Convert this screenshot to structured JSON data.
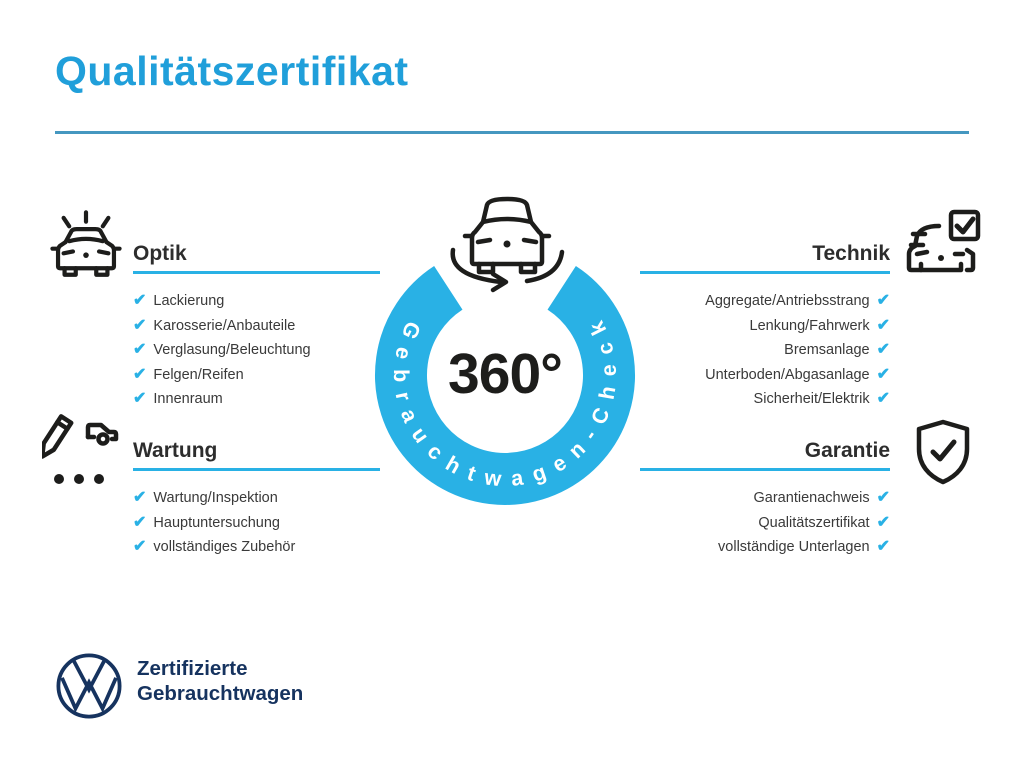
{
  "title": "Qualitätszertifikat",
  "checkmark": "✔",
  "colors": {
    "title_blue": "#209fda",
    "accent_blue": "#29b1e5",
    "rule_blue": "#4597c0",
    "heading_dark": "#2d2d2d",
    "item_gray": "#3a3a3a",
    "vw_navy": "#16335f",
    "icon_black": "#1d1d1b"
  },
  "center": {
    "degree_label": "360°",
    "ring_label": "Gebrauchtwagen-Check"
  },
  "sections": [
    {
      "id": "optik",
      "title": "Optik",
      "icon": "sparkle-car-icon",
      "align": "left",
      "items": [
        "Lackierung",
        "Karosserie/Anbauteile",
        "Verglasung/Beleuchtung",
        "Felgen/Reifen",
        "Innenraum"
      ]
    },
    {
      "id": "technik",
      "title": "Technik",
      "icon": "car-checkbox-icon",
      "align": "right",
      "items": [
        "Aggregate/Antriebsstrang",
        "Lenkung/Fahrwerk",
        "Bremsanlage",
        "Unterboden/Abgasanlage",
        "Sicherheit/Elektrik"
      ]
    },
    {
      "id": "wartung",
      "title": "Wartung",
      "icon": "service-checklist-icon",
      "align": "left",
      "items": [
        "Wartung/Inspektion",
        "Hauptuntersuchung",
        "vollständiges Zubehör"
      ]
    },
    {
      "id": "garantie",
      "title": "Garantie",
      "icon": "shield-check-icon",
      "align": "right",
      "items": [
        "Garantienachweis",
        "Qualitätszertifikat",
        "vollständige Unterlagen"
      ]
    }
  ],
  "footer": {
    "brand": "VW",
    "line1": "Zertifizierte",
    "line2": "Gebrauchtwagen"
  }
}
